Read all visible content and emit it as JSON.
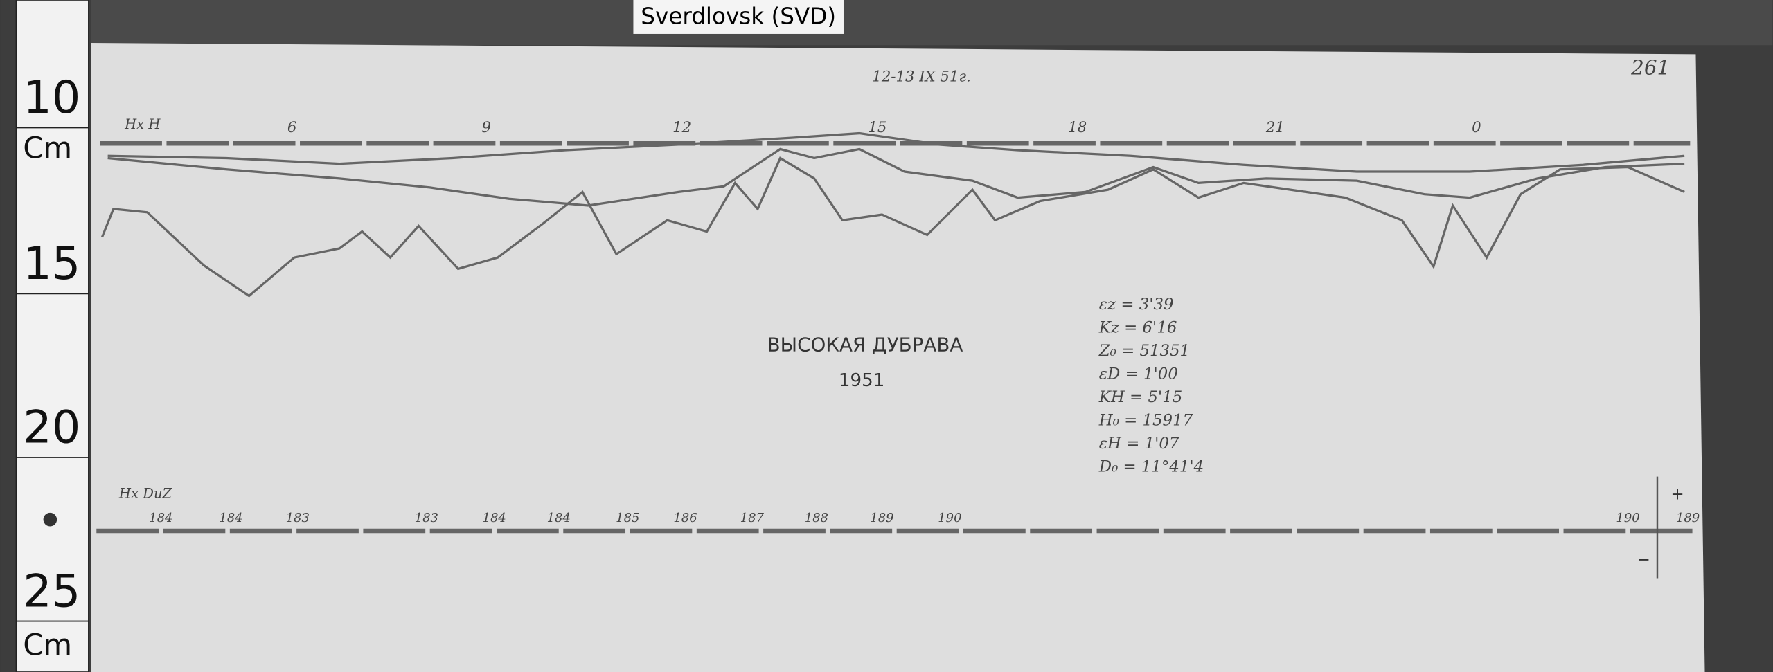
{
  "tag": "Sverdlovsk (SVD)",
  "ruler": {
    "marks": [
      "10",
      "15",
      "20",
      "25"
    ],
    "units": [
      "Cm",
      "Cm"
    ]
  },
  "header": {
    "date": "12-13 IX 51г.",
    "sheet_number": "261"
  },
  "upper_trace": {
    "label": "Нх Н",
    "hour_labels": [
      "6",
      "9",
      "12",
      "15",
      "18",
      "21",
      "0"
    ]
  },
  "title": {
    "place": "ВЫСОКАЯ ДУБРАВА",
    "year": "1951"
  },
  "constants": [
    "εz = 3'39",
    "Kz = 6'16",
    "Z₀ = 51351",
    "εD = 1'00",
    "KH = 5'15",
    "H₀ = 15917",
    "εH = 1'07",
    "D₀ = 11°41'4"
  ],
  "lower_trace": {
    "label": "Нх DuZ",
    "labels": [
      "184",
      "184",
      "183",
      "183",
      "184",
      "184",
      "185",
      "186",
      "187",
      "188",
      "189",
      "190",
      "190",
      "189"
    ]
  },
  "polarity": [
    "+",
    "−"
  ]
}
